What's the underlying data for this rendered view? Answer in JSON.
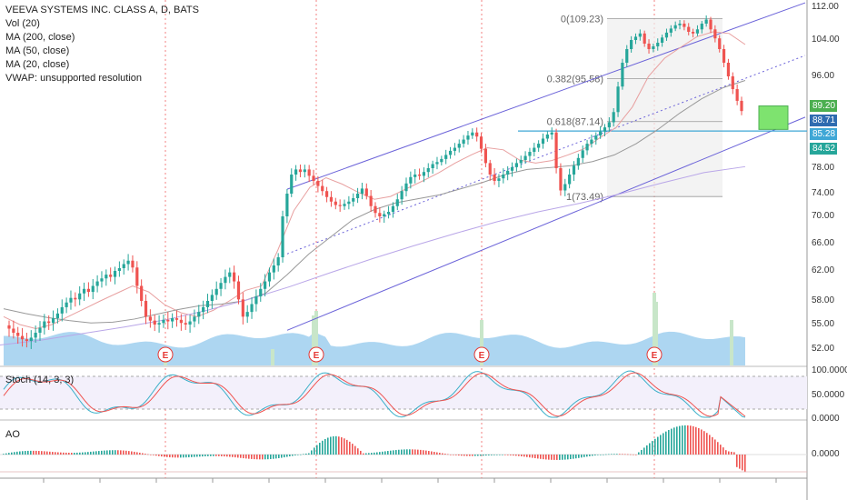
{
  "legend": {
    "title": "VEEVA SYSTEMS INC. CLASS A, D, BATS",
    "lines": [
      "Vol (20)",
      "MA (200, close)",
      "MA (50, close)",
      "MA (20, close)",
      "VWAP: unsupported resolution"
    ]
  },
  "stoch_label": "Stoch (14, 3, 3)",
  "ao_label": "AO",
  "colors": {
    "up": "#26a69a",
    "down": "#ef5350",
    "channel": "#6b63d9",
    "hline": "#3fa7d6",
    "volume": "#9fcfee",
    "green_box": "#7ee36f",
    "stoch_k": "#3cb0c9",
    "stoch_d": "#ef5350"
  },
  "price_axis": {
    "ticks": [
      "112.00",
      "104.00",
      "96.00",
      "89.20",
      "88.71",
      "85.28",
      "84.52",
      "78.00",
      "74.00",
      "70.00",
      "66.00",
      "62.00",
      "58.00",
      "55.00",
      "52.00"
    ],
    "badges": [
      {
        "text": "89.20",
        "color": "#4caf50"
      },
      {
        "text": "88.71",
        "color": "#2e6bb0"
      },
      {
        "text": "85.28",
        "color": "#3fa7d6"
      },
      {
        "text": "84.52",
        "color": "#26a69a"
      }
    ]
  },
  "stoch_axis": [
    "100.0000",
    "50.0000",
    "0.0000"
  ],
  "ao_axis": [
    "0.0000"
  ],
  "fib_levels": [
    "0(109.23)",
    "0.382(95.58)",
    "0.618(87.14)",
    "1(73.49)"
  ],
  "earnings_markers": [
    "E",
    "E",
    "E",
    "E"
  ],
  "chart_data": {
    "type": "candlestick",
    "title": "VEEVA SYSTEMS INC. CLASS A, D, BATS",
    "ylim": [
      50,
      113
    ],
    "close": [
      54.5,
      54,
      53.6,
      53.2,
      53,
      53.4,
      54,
      54.6,
      55.4,
      55.2,
      55.8,
      56.4,
      57.2,
      57.8,
      58.4,
      58.2,
      59,
      59.6,
      59.2,
      60,
      60.6,
      61,
      61.5,
      61.2,
      62,
      62.4,
      63,
      63.5,
      62.5,
      60,
      58,
      56,
      55.5,
      55,
      55.2,
      55.6,
      55.4,
      55.8,
      55.6,
      55.2,
      55,
      55.4,
      56,
      56.6,
      57.2,
      58,
      58.8,
      59.6,
      60.4,
      61.2,
      61.8,
      60.6,
      58.2,
      56,
      56.6,
      57.6,
      58.6,
      59.6,
      60.6,
      61.8,
      62.8,
      64,
      70,
      74,
      77,
      77.8,
      77.4,
      77.8,
      76.8,
      76,
      75.2,
      74.4,
      73.4,
      72.6,
      72,
      71.8,
      72.2,
      72.6,
      73.2,
      74,
      74.8,
      73.6,
      71.8,
      70.6,
      70,
      70.4,
      70.8,
      71.8,
      73,
      74.4,
      75.6,
      76.6,
      77,
      76.8,
      77.4,
      78,
      78.8,
      79.2,
      79.8,
      80.6,
      81.4,
      82,
      82.8,
      83.6,
      84.4,
      85,
      84.2,
      81.8,
      79,
      77,
      76,
      76.4,
      77,
      77.6,
      78.2,
      79,
      79.6,
      80.4,
      81.2,
      82,
      82.8,
      83.8,
      84.6,
      85,
      78,
      74.5,
      75.5,
      77,
      78.5,
      80,
      81.5,
      82.8,
      83.6,
      84.4,
      85.2,
      86,
      87,
      89,
      94,
      99,
      102,
      104,
      104.8,
      105.6,
      103.2,
      102,
      102.6,
      103.4,
      104.6,
      105.8,
      106.8,
      107.6,
      108,
      107.2,
      106,
      105.6,
      106.6,
      108,
      109,
      106.6,
      104.4,
      102,
      99,
      96,
      93.5,
      91.2,
      89.2
    ],
    "series": [
      {
        "name": "MA (20, close)",
        "values": [
          56,
          55,
          54.5,
          55,
          56,
          57,
          58,
          59,
          60,
          59.2,
          57.5,
          56.5,
          56,
          56.8,
          58,
          59.4,
          60,
          65,
          71,
          75,
          76.5,
          75.5,
          74.2,
          73,
          73.5,
          74.8,
          76,
          77.3,
          79,
          80.6,
          82,
          81.6,
          79.6,
          79,
          79.5,
          80.6,
          81.8,
          84,
          86,
          90,
          96,
          100,
          102.4,
          104.8,
          106,
          105.6,
          103
        ]
      },
      {
        "name": "MA (50, close)",
        "values": [
          57,
          56.4,
          55.9,
          55.5,
          55.2,
          55.3,
          55.7,
          56.3,
          56.9,
          57.4,
          57.6,
          58,
          59,
          61.5,
          64.5,
          67,
          69.5,
          71.2,
          72.4,
          73.1,
          73.8,
          74.8,
          75.8,
          77,
          77.8,
          78.1,
          78.5,
          79.3,
          80.6,
          82.8,
          85.6,
          88.8,
          91.6,
          93.8,
          95.2
        ]
      },
      {
        "name": "MA (200, close)",
        "values": [
          52.5,
          53.1,
          53.9,
          54.7,
          55.6,
          56.8,
          58.2,
          59.9,
          61.8,
          63.8,
          65.7,
          67.5,
          69.2,
          70.8,
          72.3,
          74,
          75.7,
          77.3,
          78.3
        ]
      }
    ],
    "channel_upper": {
      "x": [
        "start",
        "end"
      ],
      "y": [
        74.7,
        113.1
      ]
    },
    "channel_lower": {
      "x": [
        "start",
        "end"
      ],
      "y": [
        54.3,
        88.0
      ]
    },
    "channel_mid": {
      "x": [
        "start",
        "end"
      ],
      "y": [
        64.5,
        100.6
      ]
    },
    "horizontal_line": 85.28,
    "fibonacci": [
      {
        "level": 0,
        "price": 109.23
      },
      {
        "level": 0.382,
        "price": 95.58
      },
      {
        "level": 0.618,
        "price": 87.14
      },
      {
        "level": 1,
        "price": 73.49
      }
    ]
  }
}
